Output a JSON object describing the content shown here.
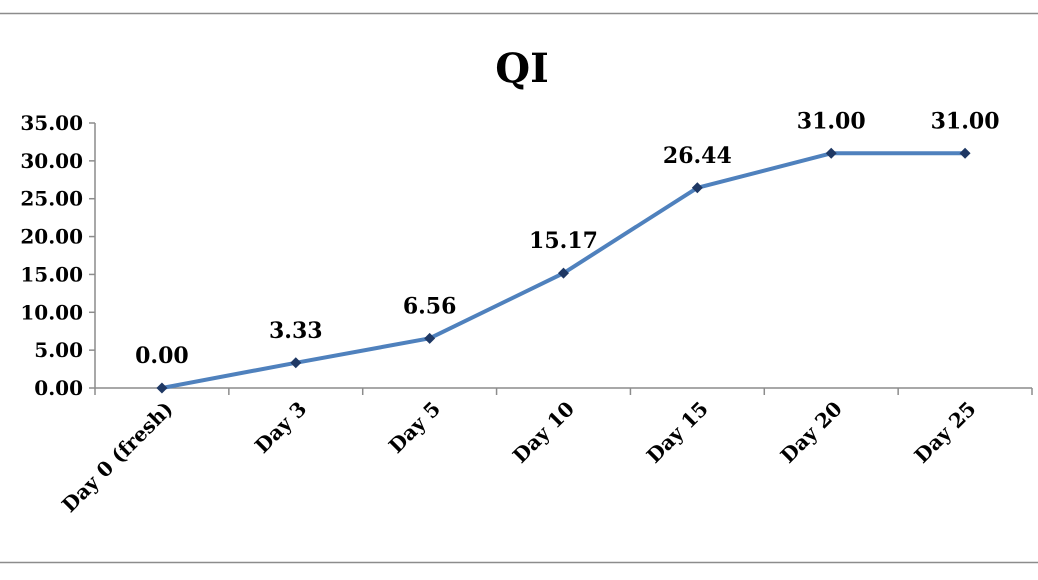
{
  "chart_data": {
    "type": "line",
    "title": "QI",
    "categories": [
      "Day 0 (fresh)",
      "Day 3",
      "Day 5",
      "Day 10",
      "Day 15",
      "Day 20",
      "Day 25"
    ],
    "series": [
      {
        "values": [
          0.0,
          3.33,
          6.56,
          15.17,
          26.44,
          31.0,
          31.0
        ],
        "data_labels": [
          "0.00",
          "3.33",
          "6.56",
          "15.17",
          "26.44",
          "31.00",
          "31.00"
        ]
      }
    ],
    "y_ticks": [
      "0.00",
      "5.00",
      "10.00",
      "15.00",
      "20.00",
      "25.00",
      "30.00",
      "35.00"
    ],
    "ylim": [
      0,
      35
    ],
    "grid": false,
    "legend": "none",
    "line_color": "#4F81BD",
    "marker_color": "#1F3864",
    "border_color": "#8C8C8C"
  }
}
